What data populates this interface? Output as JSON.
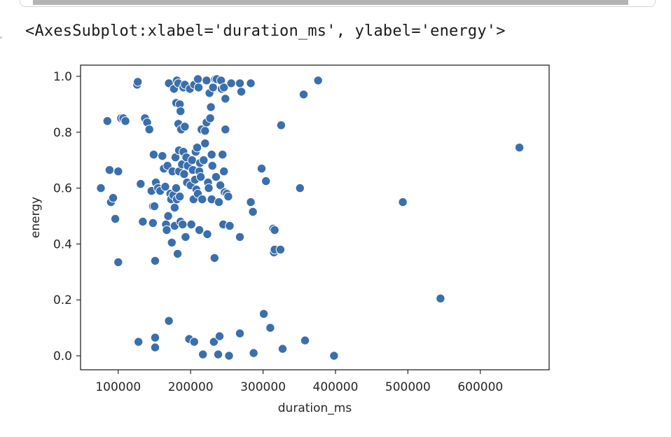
{
  "output": {
    "text": "<AxesSubplot:xlabel='duration_ms', ylabel='energy'>"
  },
  "colors": {
    "point_fill": "#3a6fad",
    "point_stroke": "#ffffff",
    "axes_edge": "#262626",
    "text": "#262626"
  },
  "chart_data": {
    "type": "scatter",
    "title": "",
    "xlabel": "duration_ms",
    "ylabel": "energy",
    "xlim": [
      48000,
      695000
    ],
    "ylim": [
      -0.05,
      1.04
    ],
    "xticks": [
      100000,
      200000,
      300000,
      400000,
      500000,
      600000
    ],
    "xtick_labels": [
      "100000",
      "200000",
      "300000",
      "400000",
      "500000",
      "600000"
    ],
    "yticks": [
      0.0,
      0.2,
      0.4,
      0.6,
      0.8,
      1.0
    ],
    "ytick_labels": [
      "0.0",
      "0.2",
      "0.4",
      "0.6",
      "0.8",
      "1.0"
    ],
    "grid": false,
    "legend": "none",
    "points": [
      [
        76000,
        0.6
      ],
      [
        85000,
        0.84
      ],
      [
        88000,
        0.665
      ],
      [
        90000,
        0.55
      ],
      [
        93000,
        0.565
      ],
      [
        96000,
        0.49
      ],
      [
        100000,
        0.335
      ],
      [
        100000,
        0.66
      ],
      [
        104000,
        0.85
      ],
      [
        107000,
        0.85
      ],
      [
        110000,
        0.84
      ],
      [
        126000,
        0.97
      ],
      [
        127000,
        0.98
      ],
      [
        128000,
        0.05
      ],
      [
        131000,
        0.615
      ],
      [
        134000,
        0.48
      ],
      [
        137000,
        0.85
      ],
      [
        140000,
        0.835
      ],
      [
        143000,
        0.81
      ],
      [
        146000,
        0.59
      ],
      [
        148000,
        0.475
      ],
      [
        148000,
        0.535
      ],
      [
        149000,
        0.72
      ],
      [
        150000,
        0.535
      ],
      [
        151000,
        0.34
      ],
      [
        151000,
        0.03
      ],
      [
        151000,
        0.065
      ],
      [
        152000,
        0.62
      ],
      [
        155000,
        0.6
      ],
      [
        158000,
        0.59
      ],
      [
        161000,
        0.715
      ],
      [
        163000,
        0.67
      ],
      [
        165000,
        0.605
      ],
      [
        166000,
        0.47
      ],
      [
        167000,
        0.45
      ],
      [
        168000,
        0.68
      ],
      [
        169000,
        0.5
      ],
      [
        170000,
        0.975
      ],
      [
        170000,
        0.125
      ],
      [
        172000,
        0.58
      ],
      [
        173000,
        0.56
      ],
      [
        174000,
        0.405
      ],
      [
        175000,
        0.66
      ],
      [
        176000,
        0.575
      ],
      [
        177000,
        0.955
      ],
      [
        178000,
        0.465
      ],
      [
        178000,
        0.53
      ],
      [
        179000,
        0.71
      ],
      [
        180000,
        0.905
      ],
      [
        180000,
        0.6
      ],
      [
        181000,
        0.985
      ],
      [
        181000,
        0.56
      ],
      [
        182000,
        0.365
      ],
      [
        183000,
        0.975
      ],
      [
        183000,
        0.83
      ],
      [
        184000,
        0.735
      ],
      [
        184000,
        0.66
      ],
      [
        185000,
        0.9
      ],
      [
        185000,
        0.57
      ],
      [
        186000,
        0.875
      ],
      [
        186000,
        0.48
      ],
      [
        187000,
        0.81
      ],
      [
        188000,
        0.685
      ],
      [
        189000,
        0.47
      ],
      [
        190000,
        0.96
      ],
      [
        190000,
        0.73
      ],
      [
        191000,
        0.65
      ],
      [
        192000,
        0.97
      ],
      [
        192000,
        0.82
      ],
      [
        193000,
        0.425
      ],
      [
        194000,
        0.71
      ],
      [
        195000,
        0.62
      ],
      [
        196000,
        0.68
      ],
      [
        198000,
        0.06
      ],
      [
        199000,
        0.955
      ],
      [
        200000,
        0.61
      ],
      [
        201000,
        0.47
      ],
      [
        202000,
        0.7
      ],
      [
        203000,
        0.665
      ],
      [
        204000,
        0.56
      ],
      [
        205000,
        0.05
      ],
      [
        205000,
        0.97
      ],
      [
        206000,
        0.63
      ],
      [
        207000,
        0.73
      ],
      [
        208000,
        0.595
      ],
      [
        209000,
        0.745
      ],
      [
        210000,
        0.58
      ],
      [
        210000,
        0.99
      ],
      [
        211000,
        0.96
      ],
      [
        212000,
        0.45
      ],
      [
        212000,
        0.66
      ],
      [
        213000,
        0.69
      ],
      [
        214000,
        0.64
      ],
      [
        215000,
        0.81
      ],
      [
        216000,
        0.56
      ],
      [
        217000,
        0.005
      ],
      [
        218000,
        0.7
      ],
      [
        220000,
        0.76
      ],
      [
        220000,
        0.805
      ],
      [
        222000,
        0.985
      ],
      [
        222000,
        0.835
      ],
      [
        223000,
        0.435
      ],
      [
        224000,
        0.62
      ],
      [
        225000,
        0.6
      ],
      [
        226000,
        0.94
      ],
      [
        227000,
        0.85
      ],
      [
        228000,
        0.89
      ],
      [
        229000,
        0.72
      ],
      [
        229000,
        0.56
      ],
      [
        230000,
        0.68
      ],
      [
        231000,
        0.96
      ],
      [
        232000,
        0.05
      ],
      [
        233000,
        0.35
      ],
      [
        234000,
        0.99
      ],
      [
        235000,
        0.64
      ],
      [
        236000,
        0.99
      ],
      [
        238000,
        0.005
      ],
      [
        239000,
        0.55
      ],
      [
        240000,
        0.07
      ],
      [
        241000,
        0.61
      ],
      [
        242000,
        0.985
      ],
      [
        243000,
        0.955
      ],
      [
        244000,
        0.72
      ],
      [
        245000,
        0.47
      ],
      [
        246000,
        0.96
      ],
      [
        246000,
        0.66
      ],
      [
        247000,
        0.585
      ],
      [
        248000,
        0.81
      ],
      [
        248000,
        0.92
      ],
      [
        250000,
        0.58
      ],
      [
        252000,
        0.57
      ],
      [
        253000,
        0.0
      ],
      [
        254000,
        0.465
      ],
      [
        256000,
        0.975
      ],
      [
        268000,
        0.975
      ],
      [
        268000,
        0.425
      ],
      [
        268000,
        0.08
      ],
      [
        270000,
        0.945
      ],
      [
        283000,
        0.975
      ],
      [
        283000,
        0.55
      ],
      [
        286000,
        0.515
      ],
      [
        287000,
        0.01
      ],
      [
        298000,
        0.67
      ],
      [
        301000,
        0.15
      ],
      [
        304000,
        0.625
      ],
      [
        310000,
        0.1
      ],
      [
        314000,
        0.455
      ],
      [
        315000,
        0.37
      ],
      [
        316000,
        0.45
      ],
      [
        316000,
        0.38
      ],
      [
        324000,
        0.38
      ],
      [
        325000,
        0.825
      ],
      [
        327000,
        0.025
      ],
      [
        351000,
        0.6
      ],
      [
        356000,
        0.935
      ],
      [
        358000,
        0.055
      ],
      [
        376000,
        0.985
      ],
      [
        398000,
        0.0
      ],
      [
        493000,
        0.55
      ],
      [
        545000,
        0.205
      ],
      [
        654000,
        0.745
      ]
    ]
  }
}
